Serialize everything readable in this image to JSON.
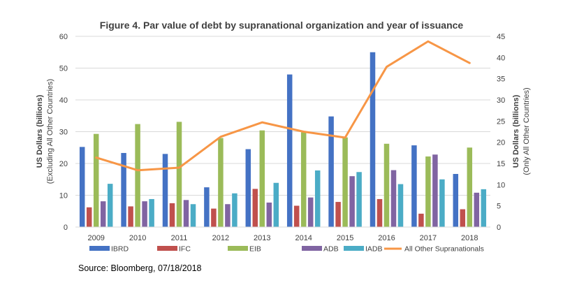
{
  "chart_data": {
    "type": "bar",
    "title": "Figure 4. Par value of debt by supranational organization and year of issuance",
    "categories": [
      "2009",
      "2010",
      "2011",
      "2012",
      "2013",
      "2014",
      "2015",
      "2016",
      "2017",
      "2018"
    ],
    "y_left": {
      "label_line1": "US Dollars  (billions)",
      "label_line2": "(Excluding All Other Countries)",
      "ylim": [
        0,
        60
      ],
      "ticks": [
        0,
        10,
        20,
        30,
        40,
        50,
        60
      ]
    },
    "y_right": {
      "label_line1": "US Dollars  (billions)",
      "label_line2": "(Only All Other Countries)",
      "ylim": [
        0,
        45
      ],
      "ticks": [
        0,
        5,
        10,
        15,
        20,
        25,
        30,
        35,
        40,
        45
      ]
    },
    "series": [
      {
        "name": "IBRD",
        "color": "#4472C4",
        "values": [
          25.2,
          23.3,
          23.0,
          12.5,
          24.5,
          48.0,
          34.8,
          55.0,
          25.7,
          16.7
        ]
      },
      {
        "name": "IFC",
        "color": "#C0504D",
        "values": [
          6.2,
          6.5,
          7.5,
          5.8,
          12.0,
          6.7,
          7.9,
          8.8,
          4.2,
          5.6
        ]
      },
      {
        "name": "EIB",
        "color": "#9BBB59",
        "values": [
          29.3,
          32.4,
          33.1,
          28.0,
          30.4,
          29.8,
          28.2,
          26.2,
          22.2,
          25.0
        ]
      },
      {
        "name": "ADB",
        "color": "#8064A2",
        "values": [
          8.1,
          8.1,
          8.5,
          7.2,
          7.7,
          9.3,
          16.0,
          17.9,
          22.8,
          10.8
        ]
      },
      {
        "name": "IADB",
        "color": "#4BACC6",
        "values": [
          13.6,
          8.8,
          7.2,
          10.6,
          13.9,
          17.8,
          17.3,
          13.5,
          15.0,
          11.9
        ]
      }
    ],
    "line_series": {
      "name": "All Other Supranationals",
      "color": "#F79646",
      "axis": "right",
      "values": [
        16.4,
        13.4,
        14.0,
        21.3,
        24.7,
        22.5,
        21.1,
        37.8,
        43.8,
        38.7
      ]
    }
  },
  "source": "Source: Bloomberg, 07/18/2018"
}
